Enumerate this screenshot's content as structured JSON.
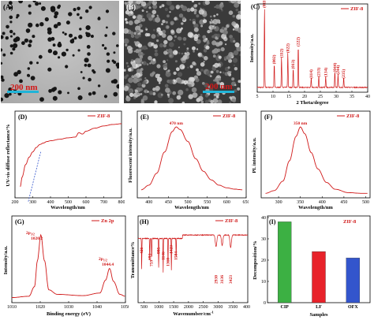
{
  "figure": {
    "panelA": {
      "label": "(A)",
      "scale": "200 nm"
    },
    "panelB": {
      "label": "(B)",
      "scale": "200 nm"
    },
    "panelC": {
      "label": "(C)",
      "legend": "ZIF-8",
      "ylabel": "Intensity/a.u.",
      "xlabel": "2 Theta/degree",
      "xticks": [
        "5",
        "10",
        "15",
        "20",
        "25",
        "30",
        "35",
        "40"
      ],
      "peaks": [
        "(011)",
        "(002)",
        "(112)",
        "(022)",
        "(013)",
        "(222)",
        "(114)",
        "(233)",
        "(134)",
        "(044)",
        "(244)",
        "(235)"
      ]
    },
    "panelD": {
      "label": "(D)",
      "legend": "ZIF-8",
      "ylabel": "UV-vis diffuse reflectance/%",
      "xlabel": "Wavelength/nm",
      "xticks": [
        "200",
        "300",
        "400",
        "500",
        "600",
        "700",
        "800"
      ]
    },
    "panelE": {
      "label": "(E)",
      "legend": "ZIF-8",
      "peak": "470 nm",
      "ylabel": "Fluorescent intensity/a.u.",
      "xlabel": "Wavelength/nm",
      "xticks": [
        "400",
        "450",
        "500",
        "550",
        "600",
        "650"
      ]
    },
    "panelF": {
      "label": "(F)",
      "legend": "ZIF-8",
      "peak": "350 nm",
      "ylabel": "PL intensity/a.u.",
      "xlabel": "Wavelength/nm",
      "xticks": [
        "300",
        "350",
        "400",
        "450",
        "500"
      ]
    },
    "panelG": {
      "label": "(G)",
      "legend": "Zn 2p",
      "peak1_a": "2p",
      "peak1_b": "3/2",
      "peak1_val": "1020.2",
      "peak2_a": "2p",
      "peak2_b": "1/2",
      "peak2_val": "1044.4",
      "ylabel": "Intensity/a.u.",
      "xlabel": "Binding energy (eV)",
      "xticks": [
        "1010",
        "1020",
        "1030",
        "1040",
        "1050"
      ]
    },
    "panelH": {
      "label": "(H)",
      "legend": "ZIF-8",
      "ylabel": "Transmittance%",
      "xlabel": "Wavenumber/cm",
      "xlabel_sup": "-1",
      "xticks": [
        "500",
        "1000",
        "1500",
        "2000",
        "2500",
        "3000",
        "3500",
        "4000"
      ],
      "bands": [
        "421",
        "693",
        "759",
        "995",
        "1146",
        "1310",
        "1423",
        "1584",
        "2930",
        "3136",
        "3423"
      ]
    },
    "panelI": {
      "label": "(I)",
      "legend": "ZIF-8",
      "ylabel": "Decomposition/%",
      "xlabel": "Samples",
      "yticks": [
        "0",
        "10",
        "20",
        "30",
        "40"
      ]
    }
  },
  "chart_data": [
    {
      "type": "line",
      "panel": "C",
      "xlabel": "2 Theta/degree",
      "ylabel": "Intensity/a.u.",
      "xlim": [
        5,
        40
      ],
      "x": [
        7.3,
        10.4,
        12.7,
        14.7,
        16.4,
        18.0,
        22.1,
        24.5,
        26.7,
        29.6,
        30.6,
        32.4
      ],
      "y": [
        100,
        30,
        38,
        44,
        24,
        52,
        12,
        14,
        14,
        20,
        17,
        12
      ]
    },
    {
      "type": "line",
      "panel": "D",
      "xlabel": "Wavelength/nm",
      "ylabel": "UV-vis diffuse reflectance/%",
      "xlim": [
        200,
        800
      ],
      "x": [
        230,
        240,
        260,
        280,
        300,
        320,
        340,
        360,
        380,
        400,
        450,
        500,
        540,
        560,
        580,
        600,
        650,
        700,
        750,
        800
      ],
      "y": [
        0.15,
        0.28,
        0.45,
        0.55,
        0.62,
        0.68,
        0.72,
        0.74,
        0.76,
        0.77,
        0.79,
        0.81,
        0.82,
        0.88,
        0.86,
        0.9,
        0.94,
        0.97,
        0.99,
        1.0
      ]
    },
    {
      "type": "line",
      "panel": "E",
      "xlabel": "Wavelength/nm",
      "ylabel": "Fluorescent intensity/a.u.",
      "xlim": [
        370,
        650
      ],
      "x": [
        380,
        400,
        420,
        440,
        460,
        470,
        480,
        500,
        520,
        540,
        560,
        580,
        600,
        620,
        640
      ],
      "y": [
        0.05,
        0.12,
        0.3,
        0.62,
        0.93,
        1.0,
        0.96,
        0.78,
        0.52,
        0.33,
        0.2,
        0.12,
        0.08,
        0.06,
        0.05
      ]
    },
    {
      "type": "line",
      "panel": "F",
      "xlabel": "Wavelength/nm",
      "ylabel": "PL intensity/a.u.",
      "xlim": [
        260,
        510
      ],
      "x": [
        270,
        290,
        310,
        325,
        340,
        350,
        360,
        375,
        390,
        410,
        430,
        460,
        490,
        505
      ],
      "y": [
        0.02,
        0.06,
        0.2,
        0.5,
        0.86,
        1.0,
        0.9,
        0.62,
        0.38,
        0.18,
        0.08,
        0.03,
        0.02,
        0.02
      ]
    },
    {
      "type": "line",
      "panel": "G",
      "xlabel": "Binding energy (eV)",
      "ylabel": "Intensity/a.u.",
      "xlim": [
        1010,
        1050
      ],
      "x": [
        1010,
        1016,
        1018,
        1019,
        1020.2,
        1021.5,
        1023,
        1026,
        1035,
        1041,
        1043,
        1044.4,
        1045.8,
        1048,
        1050
      ],
      "y": [
        0.03,
        0.05,
        0.2,
        0.6,
        1.0,
        0.6,
        0.15,
        0.08,
        0.06,
        0.1,
        0.3,
        0.48,
        0.28,
        0.08,
        0.05
      ]
    },
    {
      "type": "line",
      "panel": "H",
      "xlabel": "Wavenumber/cm-1",
      "ylabel": "Transmittance%",
      "xlim": [
        400,
        4000
      ],
      "x": [
        421,
        693,
        759,
        995,
        1146,
        1310,
        1423,
        1584,
        2930,
        3136,
        3423
      ],
      "y": [
        0.25,
        0.45,
        0.52,
        0.3,
        0.18,
        0.38,
        0.22,
        0.55,
        0.72,
        0.75,
        0.7
      ]
    },
    {
      "type": "bar",
      "panel": "I",
      "xlabel": "Samples",
      "ylabel": "Decomposition/%",
      "ylim": [
        0,
        40
      ],
      "categories": [
        "CIP",
        "LF",
        "OFX"
      ],
      "values": [
        38,
        24,
        21
      ],
      "colors": [
        "#3cb043",
        "#e8222a",
        "#3355cc"
      ]
    }
  ]
}
